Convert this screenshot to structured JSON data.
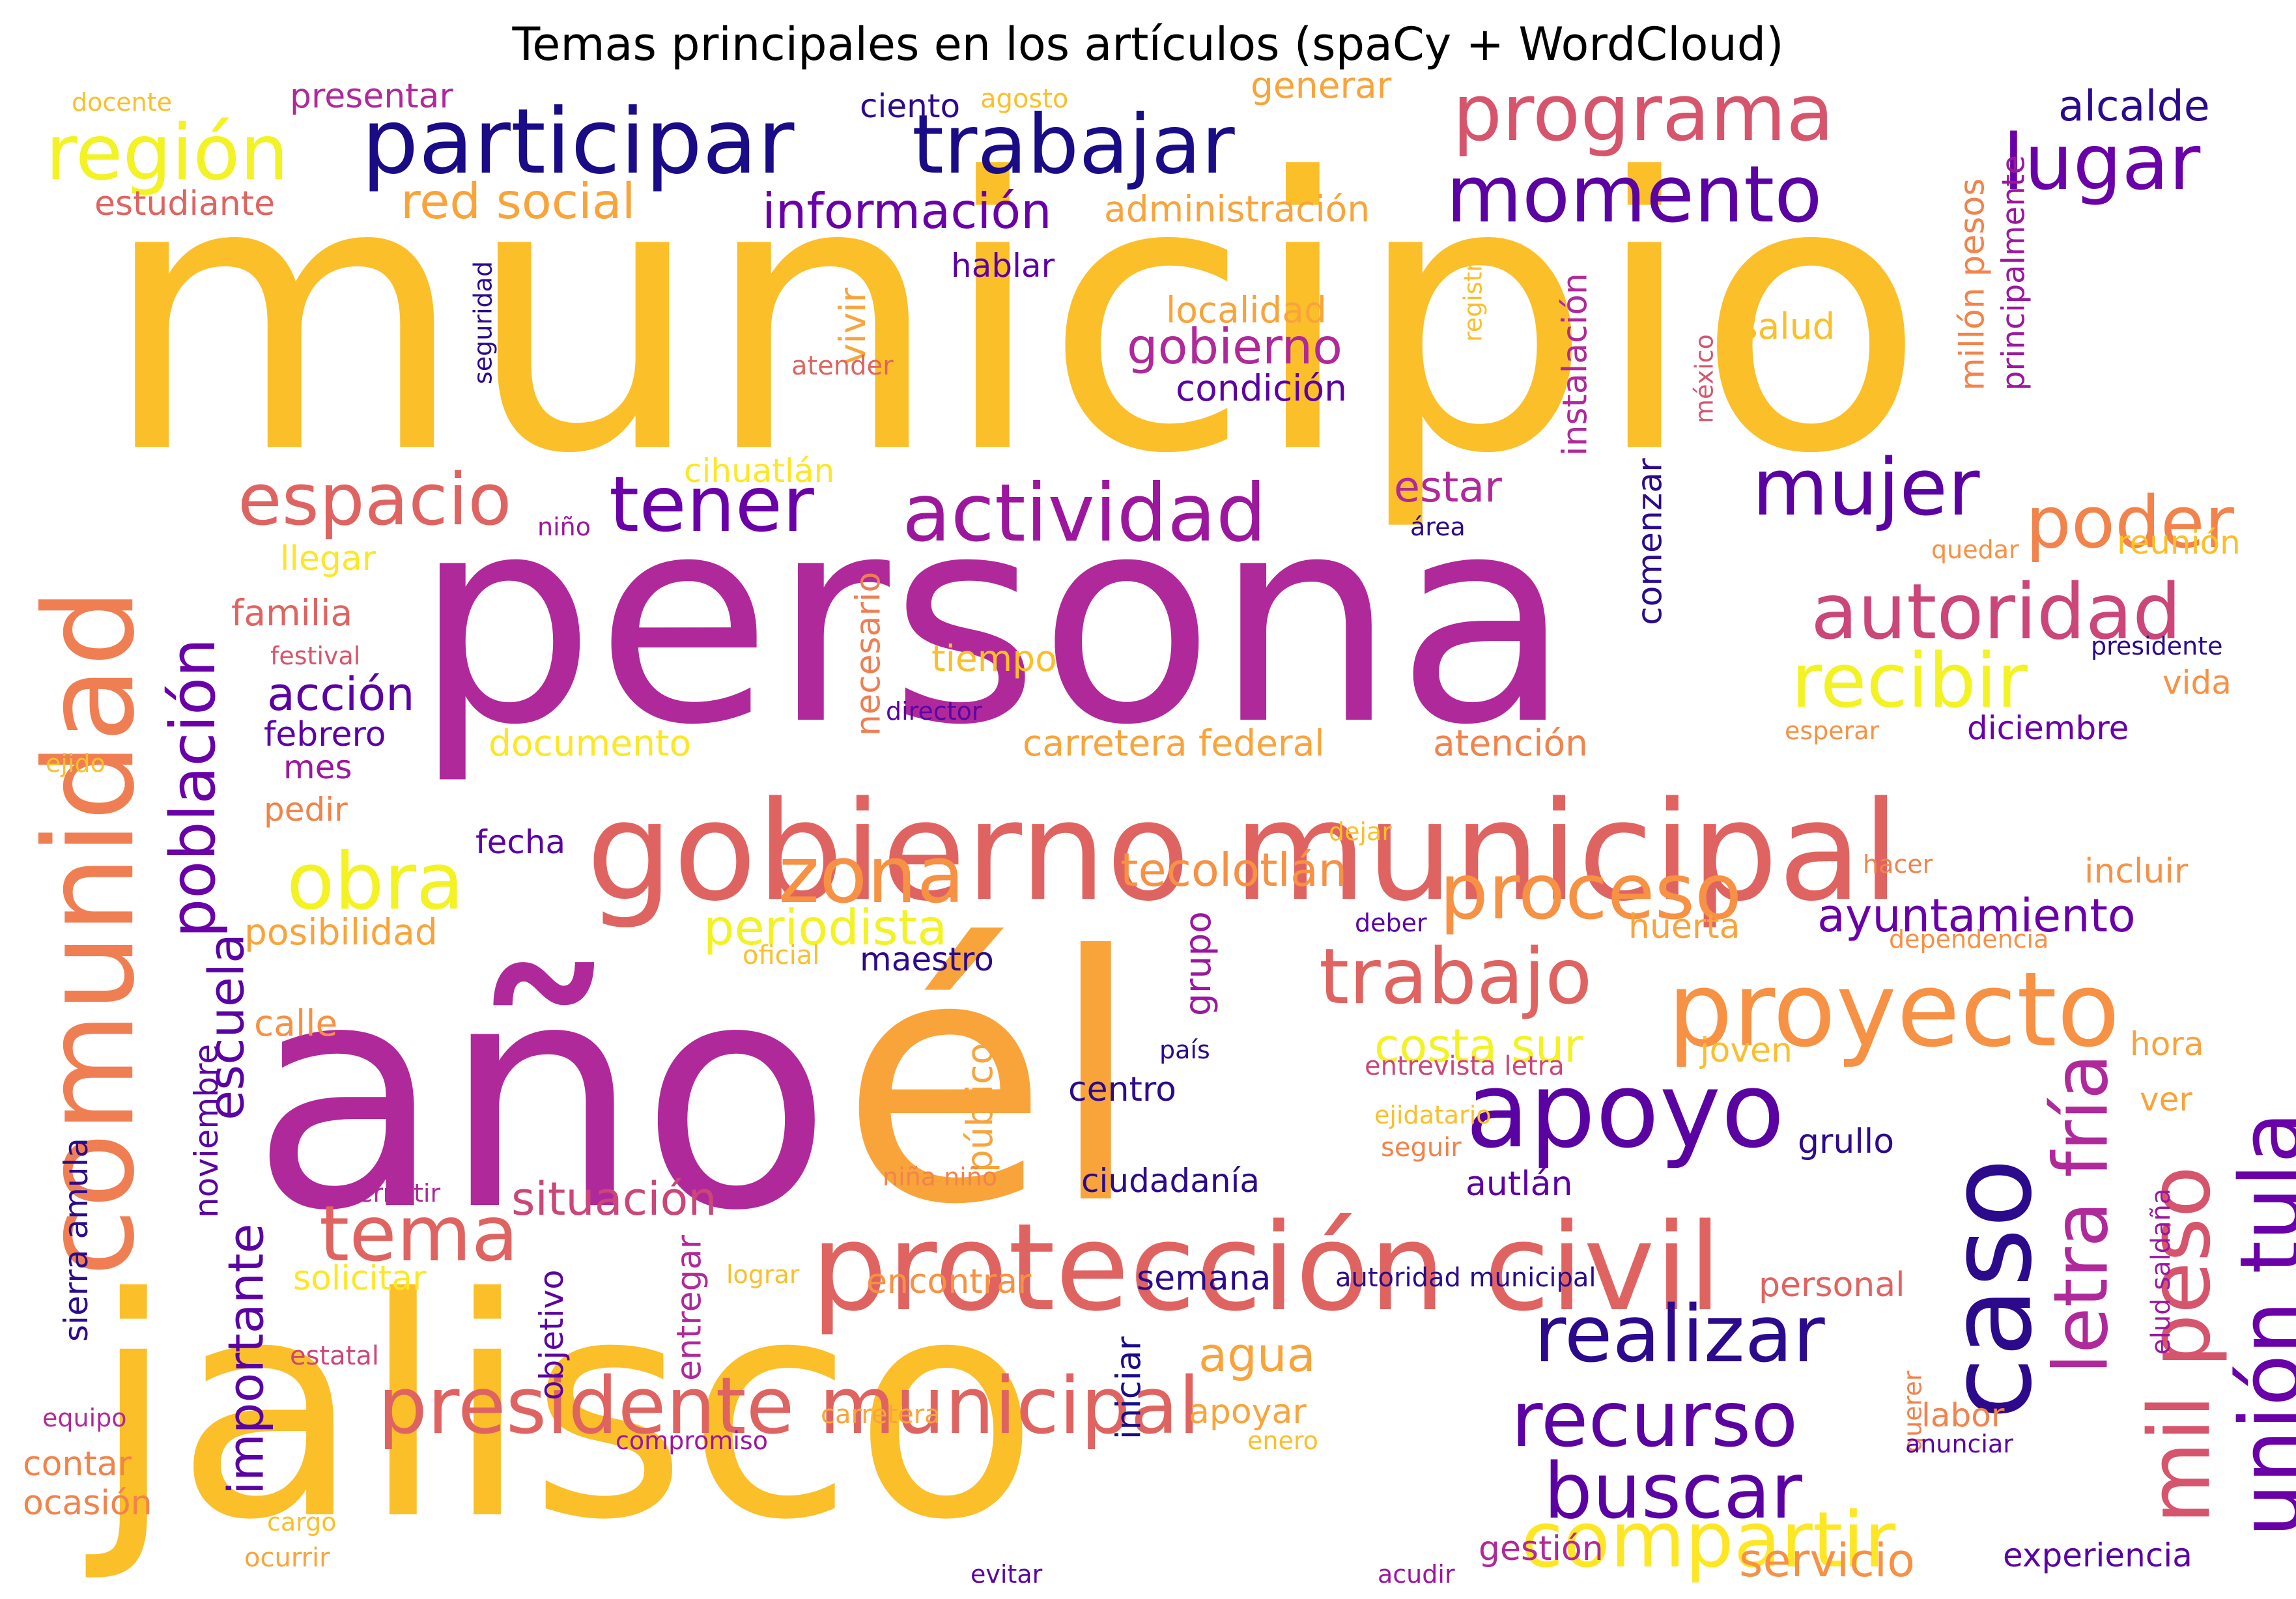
{
  "chart_data": {
    "type": "wordcloud",
    "title": "Temas principales en los artículos (spaCy + WordCloud)",
    "colormap": "plasma",
    "words": [
      {
        "text": "municipio",
        "weight": 1.0,
        "color": "#fbbf2a",
        "vertical": false
      },
      {
        "text": "persona",
        "weight": 0.86,
        "color": "#b0299a",
        "vertical": false
      },
      {
        "text": "año",
        "weight": 0.8,
        "color": "#b0299a",
        "vertical": false
      },
      {
        "text": "él",
        "weight": 0.8,
        "color": "#f9a43a",
        "vertical": false
      },
      {
        "text": "jalisco",
        "weight": 0.8,
        "color": "#fbbf2a",
        "vertical": false
      },
      {
        "text": "gobierno municipal",
        "weight": 0.4,
        "color": "#df6461",
        "vertical": false
      },
      {
        "text": "protección civil",
        "weight": 0.35,
        "color": "#df6461",
        "vertical": false
      },
      {
        "text": "comunidad",
        "weight": 0.36,
        "color": "#ef7f53",
        "vertical": true
      },
      {
        "text": "caso",
        "weight": 0.34,
        "color": "#2c0a8c",
        "vertical": true
      },
      {
        "text": "proyecto",
        "weight": 0.26,
        "color": "#f79144",
        "vertical": false
      },
      {
        "text": "apoyo",
        "weight": 0.25,
        "color": "#5b02a3",
        "vertical": false
      },
      {
        "text": "participar",
        "weight": 0.2,
        "color": "#1a0c86",
        "vertical": false
      },
      {
        "text": "trabajar",
        "weight": 0.2,
        "color": "#1a0c86",
        "vertical": false
      },
      {
        "text": "programa",
        "weight": 0.2,
        "color": "#d6556d",
        "vertical": false
      },
      {
        "text": "región",
        "weight": 0.19,
        "color": "#f3f223",
        "vertical": false
      },
      {
        "text": "momento",
        "weight": 0.19,
        "color": "#5b02a3",
        "vertical": false
      },
      {
        "text": "lugar",
        "weight": 0.19,
        "color": "#6a00a8",
        "vertical": false
      },
      {
        "text": "tener",
        "weight": 0.2,
        "color": "#6a00a8",
        "vertical": false
      },
      {
        "text": "actividad",
        "weight": 0.2,
        "color": "#9c179e",
        "vertical": false
      },
      {
        "text": "espacio",
        "weight": 0.19,
        "color": "#df6461",
        "vertical": false
      },
      {
        "text": "mujer",
        "weight": 0.2,
        "color": "#5b02a3",
        "vertical": false
      },
      {
        "text": "poder",
        "weight": 0.2,
        "color": "#f1834b",
        "vertical": false
      },
      {
        "text": "autoridad",
        "weight": 0.2,
        "color": "#cb4679",
        "vertical": false
      },
      {
        "text": "recibir",
        "weight": 0.2,
        "color": "#f3f223",
        "vertical": false
      },
      {
        "text": "obra",
        "weight": 0.19,
        "color": "#f3f223",
        "vertical": false
      },
      {
        "text": "zona",
        "weight": 0.19,
        "color": "#f79144",
        "vertical": false
      },
      {
        "text": "proceso",
        "weight": 0.2,
        "color": "#f79144",
        "vertical": false
      },
      {
        "text": "trabajo",
        "weight": 0.2,
        "color": "#df6461",
        "vertical": false
      },
      {
        "text": "tema",
        "weight": 0.2,
        "color": "#df6461",
        "vertical": false
      },
      {
        "text": "presidente municipal",
        "weight": 0.2,
        "color": "#df6461",
        "vertical": false
      },
      {
        "text": "realizar",
        "weight": 0.2,
        "color": "#2c0a8c",
        "vertical": false
      },
      {
        "text": "recurso",
        "weight": 0.2,
        "color": "#5b02a3",
        "vertical": false
      },
      {
        "text": "buscar",
        "weight": 0.2,
        "color": "#5b02a3",
        "vertical": false
      },
      {
        "text": "compartir",
        "weight": 0.2,
        "color": "#fde725",
        "vertical": false
      },
      {
        "text": "mil peso",
        "weight": 0.2,
        "color": "#d6556d",
        "vertical": true
      },
      {
        "text": "unión tula",
        "weight": 0.2,
        "color": "#6a00a8",
        "vertical": true
      },
      {
        "text": "letra fría",
        "weight": 0.2,
        "color": "#b0299a",
        "vertical": true
      },
      {
        "text": "población",
        "weight": 0.15,
        "color": "#6a00a8",
        "vertical": true
      },
      {
        "text": "red social",
        "weight": 0.12,
        "color": "#f9a43a",
        "vertical": false
      },
      {
        "text": "información",
        "weight": 0.12,
        "color": "#6a00a8",
        "vertical": false
      },
      {
        "text": "gobierno",
        "weight": 0.12,
        "color": "#b0299a",
        "vertical": false
      },
      {
        "text": "ayuntamiento",
        "weight": 0.12,
        "color": "#6a00a8",
        "vertical": false
      },
      {
        "text": "periodista",
        "weight": 0.12,
        "color": "#f3f223",
        "vertical": false
      },
      {
        "text": "tecolotlán",
        "weight": 0.11,
        "color": "#f79144",
        "vertical": false
      },
      {
        "text": "costa sur",
        "weight": 0.12,
        "color": "#f3f223",
        "vertical": false
      },
      {
        "text": "situación",
        "weight": 0.11,
        "color": "#cb4679",
        "vertical": false
      },
      {
        "text": "acción",
        "weight": 0.11,
        "color": "#5b02a3",
        "vertical": false
      },
      {
        "text": "escuela",
        "weight": 0.12,
        "color": "#5b02a3",
        "vertical": true
      },
      {
        "text": "importante",
        "weight": 0.12,
        "color": "#5b02a3",
        "vertical": true
      },
      {
        "text": "agua",
        "weight": 0.11,
        "color": "#f9a43a",
        "vertical": false
      },
      {
        "text": "servicio",
        "weight": 0.11,
        "color": "#f79144",
        "vertical": false
      },
      {
        "text": "estar",
        "weight": 0.09,
        "color": "#b0299a",
        "vertical": false
      },
      {
        "text": "alcalde",
        "weight": 0.09,
        "color": "#2c0a8c",
        "vertical": false
      },
      {
        "text": "administración",
        "weight": 0.08,
        "color": "#f9a43a",
        "vertical": false
      },
      {
        "text": "hablar",
        "weight": 0.07,
        "color": "#5b02a3",
        "vertical": false
      },
      {
        "text": "localidad",
        "weight": 0.08,
        "color": "#f9a43a",
        "vertical": false
      },
      {
        "text": "condición",
        "weight": 0.08,
        "color": "#5b02a3",
        "vertical": false
      },
      {
        "text": "salud",
        "weight": 0.08,
        "color": "#fbbf2a",
        "vertical": false
      },
      {
        "text": "ciento",
        "weight": 0.07,
        "color": "#2c0a8c",
        "vertical": false
      },
      {
        "text": "agosto",
        "weight": 0.06,
        "color": "#fbbf2a",
        "vertical": false
      },
      {
        "text": "generar",
        "weight": 0.08,
        "color": "#f9a43a",
        "vertical": false
      },
      {
        "text": "presentar",
        "weight": 0.08,
        "color": "#b0299a",
        "vertical": false
      },
      {
        "text": "docente",
        "weight": 0.05,
        "color": "#fbbf2a",
        "vertical": false
      },
      {
        "text": "estudiante",
        "weight": 0.07,
        "color": "#df6461",
        "vertical": false
      },
      {
        "text": "seguridad",
        "weight": 0.05,
        "color": "#2c0a8c",
        "vertical": true
      },
      {
        "text": "vivir",
        "weight": 0.07,
        "color": "#f9a43a",
        "vertical": true
      },
      {
        "text": "atender",
        "weight": 0.06,
        "color": "#df6461",
        "vertical": false
      },
      {
        "text": "registro",
        "weight": 0.05,
        "color": "#fbbf2a",
        "vertical": true
      },
      {
        "text": "instalación",
        "weight": 0.08,
        "color": "#b0299a",
        "vertical": true
      },
      {
        "text": "méxico",
        "weight": 0.05,
        "color": "#d6556d",
        "vertical": true
      },
      {
        "text": "millón pesos",
        "weight": 0.08,
        "color": "#f1834b",
        "vertical": true
      },
      {
        "text": "principalmente",
        "weight": 0.07,
        "color": "#9c179e",
        "vertical": true
      },
      {
        "text": "cihuatlán",
        "weight": 0.07,
        "color": "#fde725",
        "vertical": false
      },
      {
        "text": "niño",
        "weight": 0.05,
        "color": "#9c179e",
        "vertical": false
      },
      {
        "text": "área",
        "weight": 0.05,
        "color": "#2c0a8c",
        "vertical": false
      },
      {
        "text": "comenzar",
        "weight": 0.07,
        "color": "#2c0a8c",
        "vertical": true
      },
      {
        "text": "quedar",
        "weight": 0.05,
        "color": "#f79144",
        "vertical": false
      },
      {
        "text": "reunión",
        "weight": 0.07,
        "color": "#fbbf2a",
        "vertical": false
      },
      {
        "text": "llegar",
        "weight": 0.07,
        "color": "#fde725",
        "vertical": false
      },
      {
        "text": "familia",
        "weight": 0.08,
        "color": "#df6461",
        "vertical": false
      },
      {
        "text": "festival",
        "weight": 0.05,
        "color": "#d6556d",
        "vertical": false
      },
      {
        "text": "necesario",
        "weight": 0.07,
        "color": "#ef7f53",
        "vertical": true
      },
      {
        "text": "tiempo",
        "weight": 0.08,
        "color": "#fbbf2a",
        "vertical": false
      },
      {
        "text": "presidente",
        "weight": 0.05,
        "color": "#2c0a8c",
        "vertical": false
      },
      {
        "text": "vida",
        "weight": 0.07,
        "color": "#f79144",
        "vertical": false
      },
      {
        "text": "febrero",
        "weight": 0.07,
        "color": "#5b02a3",
        "vertical": false
      },
      {
        "text": "director",
        "weight": 0.05,
        "color": "#5b02a3",
        "vertical": false
      },
      {
        "text": "documento",
        "weight": 0.08,
        "color": "#fde725",
        "vertical": false
      },
      {
        "text": "carretera federal",
        "weight": 0.08,
        "color": "#f9a43a",
        "vertical": false
      },
      {
        "text": "atención",
        "weight": 0.08,
        "color": "#f1834b",
        "vertical": false
      },
      {
        "text": "esperar",
        "weight": 0.05,
        "color": "#f79144",
        "vertical": false
      },
      {
        "text": "diciembre",
        "weight": 0.07,
        "color": "#6a00a8",
        "vertical": false
      },
      {
        "text": "ejido",
        "weight": 0.05,
        "color": "#fbbf2a",
        "vertical": false
      },
      {
        "text": "mes",
        "weight": 0.07,
        "color": "#9c179e",
        "vertical": false
      },
      {
        "text": "pedir",
        "weight": 0.07,
        "color": "#f1834b",
        "vertical": false
      },
      {
        "text": "fecha",
        "weight": 0.07,
        "color": "#5b02a3",
        "vertical": false
      },
      {
        "text": "dejar",
        "weight": 0.05,
        "color": "#fbbf2a",
        "vertical": false
      },
      {
        "text": "hacer",
        "weight": 0.05,
        "color": "#f1834b",
        "vertical": false
      },
      {
        "text": "incluir",
        "weight": 0.07,
        "color": "#f79144",
        "vertical": false
      },
      {
        "text": "posibilidad",
        "weight": 0.08,
        "color": "#f9a43a",
        "vertical": false
      },
      {
        "text": "grupo",
        "weight": 0.07,
        "color": "#9c179e",
        "vertical": true
      },
      {
        "text": "deber",
        "weight": 0.05,
        "color": "#5b02a3",
        "vertical": false
      },
      {
        "text": "huerta",
        "weight": 0.07,
        "color": "#f9a43a",
        "vertical": false
      },
      {
        "text": "dependencia",
        "weight": 0.05,
        "color": "#f79144",
        "vertical": false
      },
      {
        "text": "oficial",
        "weight": 0.05,
        "color": "#fbbf2a",
        "vertical": false
      },
      {
        "text": "maestro",
        "weight": 0.07,
        "color": "#2c0a8c",
        "vertical": false
      },
      {
        "text": "calle",
        "weight": 0.07,
        "color": "#f79144",
        "vertical": false
      },
      {
        "text": "público",
        "weight": 0.07,
        "color": "#f9a43a",
        "vertical": true
      },
      {
        "text": "país",
        "weight": 0.05,
        "color": "#2c0a8c",
        "vertical": false
      },
      {
        "text": "entrevista letra",
        "weight": 0.05,
        "color": "#cb4679",
        "vertical": false
      },
      {
        "text": "joven",
        "weight": 0.07,
        "color": "#fbbf2a",
        "vertical": false
      },
      {
        "text": "hora",
        "weight": 0.07,
        "color": "#f9a43a",
        "vertical": false
      },
      {
        "text": "noviembre",
        "weight": 0.07,
        "color": "#5b02a3",
        "vertical": true
      },
      {
        "text": "sierra amula",
        "weight": 0.07,
        "color": "#2c0a8c",
        "vertical": true
      },
      {
        "text": "centro",
        "weight": 0.07,
        "color": "#2c0a8c",
        "vertical": false
      },
      {
        "text": "ejidatario",
        "weight": 0.05,
        "color": "#fbbf2a",
        "vertical": false
      },
      {
        "text": "ver",
        "weight": 0.07,
        "color": "#f9a43a",
        "vertical": false
      },
      {
        "text": "seguir",
        "weight": 0.05,
        "color": "#f1834b",
        "vertical": false
      },
      {
        "text": "grullo",
        "weight": 0.07,
        "color": "#2c0a8c",
        "vertical": false
      },
      {
        "text": "elud saldaña",
        "weight": 0.06,
        "color": "#9c179e",
        "vertical": true
      },
      {
        "text": "permitir",
        "weight": 0.05,
        "color": "#b0299a",
        "vertical": false
      },
      {
        "text": "niña niño",
        "weight": 0.05,
        "color": "#f1834b",
        "vertical": false
      },
      {
        "text": "ciudadanía",
        "weight": 0.07,
        "color": "#2c0a8c",
        "vertical": false
      },
      {
        "text": "autlán",
        "weight": 0.07,
        "color": "#5b02a3",
        "vertical": false
      },
      {
        "text": "solicitar",
        "weight": 0.07,
        "color": "#fde725",
        "vertical": false
      },
      {
        "text": "objetivo",
        "weight": 0.07,
        "color": "#5b02a3",
        "vertical": true
      },
      {
        "text": "entregar",
        "weight": 0.07,
        "color": "#b0299a",
        "vertical": true
      },
      {
        "text": "lograr",
        "weight": 0.05,
        "color": "#fbbf2a",
        "vertical": false
      },
      {
        "text": "encontrar",
        "weight": 0.07,
        "color": "#f79144",
        "vertical": false
      },
      {
        "text": "semana",
        "weight": 0.07,
        "color": "#2c0a8c",
        "vertical": false
      },
      {
        "text": "autoridad municipal",
        "weight": 0.05,
        "color": "#2c0a8c",
        "vertical": false
      },
      {
        "text": "personal",
        "weight": 0.07,
        "color": "#df6461",
        "vertical": false
      },
      {
        "text": "estatal",
        "weight": 0.05,
        "color": "#cb4679",
        "vertical": false
      },
      {
        "text": "iniciar",
        "weight": 0.07,
        "color": "#1a0c86",
        "vertical": true
      },
      {
        "text": "querer",
        "weight": 0.05,
        "color": "#f1834b",
        "vertical": true
      },
      {
        "text": "labor",
        "weight": 0.07,
        "color": "#f1834b",
        "vertical": false
      },
      {
        "text": "anunciar",
        "weight": 0.05,
        "color": "#5b02a3",
        "vertical": false
      },
      {
        "text": "enero",
        "weight": 0.05,
        "color": "#fbbf2a",
        "vertical": false
      },
      {
        "text": "apoyar",
        "weight": 0.07,
        "color": "#f9a43a",
        "vertical": false
      },
      {
        "text": "carretera",
        "weight": 0.05,
        "color": "#f9a43a",
        "vertical": false
      },
      {
        "text": "compromiso",
        "weight": 0.05,
        "color": "#9c179e",
        "vertical": false
      },
      {
        "text": "equipo",
        "weight": 0.05,
        "color": "#b0299a",
        "vertical": false
      },
      {
        "text": "contar",
        "weight": 0.07,
        "color": "#f1834b",
        "vertical": false
      },
      {
        "text": "ocasión",
        "weight": 0.07,
        "color": "#f1834b",
        "vertical": false
      },
      {
        "text": "cargo",
        "weight": 0.05,
        "color": "#fbbf2a",
        "vertical": false
      },
      {
        "text": "ocurrir",
        "weight": 0.05,
        "color": "#f9a43a",
        "vertical": false
      },
      {
        "text": "evitar",
        "weight": 0.05,
        "color": "#5b02a3",
        "vertical": false
      },
      {
        "text": "acudir",
        "weight": 0.05,
        "color": "#9c179e",
        "vertical": false
      },
      {
        "text": "gestión",
        "weight": 0.07,
        "color": "#b0299a",
        "vertical": false
      },
      {
        "text": "experiencia",
        "weight": 0.07,
        "color": "#5b02a3",
        "vertical": false
      }
    ]
  }
}
